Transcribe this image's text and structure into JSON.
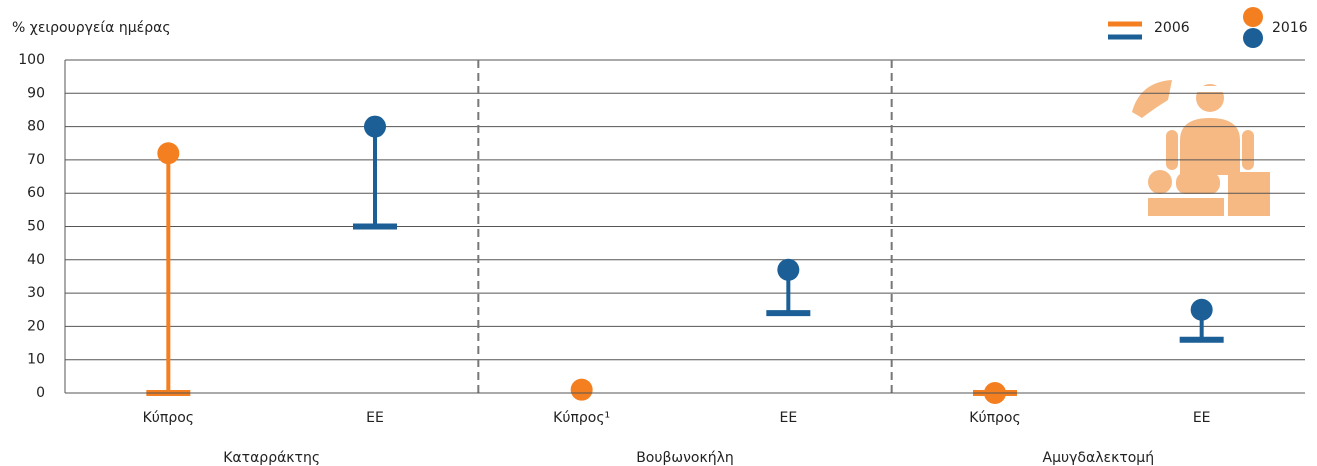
{
  "chart_data": {
    "type": "dumbbell",
    "y_label": "% χειρουργεία ημέρας",
    "categories": [
      "Κύπρος",
      "ΕΕ",
      "Κύπρος¹",
      "ΕΕ",
      "Κύπρος",
      "ΕΕ"
    ],
    "groups": [
      "Καταρράκτης",
      "Βουβωνοκήλη",
      "Αμυγδαλεκτομή"
    ],
    "point_colors": [
      "#f47f20",
      "#1b5f96",
      "#f47f20",
      "#1b5f96",
      "#f47f20",
      "#1b5f96"
    ],
    "series": [
      {
        "name": "2006",
        "marker": "dash",
        "values": [
          0,
          50,
          null,
          24,
          0,
          16
        ]
      },
      {
        "name": "2016",
        "marker": "dot",
        "values": [
          72,
          80,
          1,
          37,
          0,
          25
        ]
      }
    ],
    "ylim": [
      0,
      100
    ],
    "yticks": [
      0,
      10,
      20,
      30,
      40,
      50,
      60,
      70,
      80,
      90,
      100
    ],
    "grid": true
  }
}
